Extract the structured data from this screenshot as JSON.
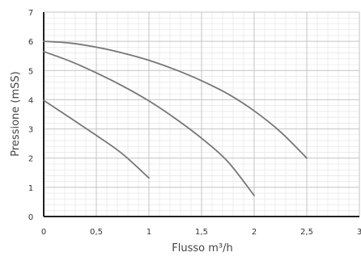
{
  "chart_data": {
    "type": "line",
    "title": "",
    "xlabel": "Flusso m³/h",
    "ylabel": "Pressione (mSS)",
    "xlim": [
      0,
      3
    ],
    "ylim": [
      0,
      7
    ],
    "x_ticks": [
      {
        "value": 0,
        "label": "0"
      },
      {
        "value": 0.5,
        "label": "0,5"
      },
      {
        "value": 1,
        "label": "1"
      },
      {
        "value": 1.5,
        "label": "1,5"
      },
      {
        "value": 2,
        "label": "2"
      },
      {
        "value": 2.5,
        "label": "2,5"
      },
      {
        "value": 3,
        "label": "3"
      }
    ],
    "y_ticks": [
      {
        "value": 0,
        "label": "0"
      },
      {
        "value": 1,
        "label": "1"
      },
      {
        "value": 2,
        "label": "2"
      },
      {
        "value": 3,
        "label": "3"
      },
      {
        "value": 4,
        "label": "4"
      },
      {
        "value": 5,
        "label": "5"
      },
      {
        "value": 6,
        "label": "6"
      },
      {
        "value": 7,
        "label": "7"
      }
    ],
    "grid": true,
    "minor_grid": true,
    "legend": "none",
    "series": [
      {
        "color": "#777777",
        "points": [
          {
            "x": 0,
            "y": 6.0
          },
          {
            "x": 0.25,
            "y": 5.94
          },
          {
            "x": 0.5,
            "y": 5.8
          },
          {
            "x": 0.75,
            "y": 5.6
          },
          {
            "x": 1.0,
            "y": 5.35
          },
          {
            "x": 1.25,
            "y": 5.03
          },
          {
            "x": 1.5,
            "y": 4.65
          },
          {
            "x": 1.75,
            "y": 4.2
          },
          {
            "x": 2.0,
            "y": 3.62
          },
          {
            "x": 2.25,
            "y": 2.9
          },
          {
            "x": 2.5,
            "y": 2.0
          }
        ]
      },
      {
        "color": "#777777",
        "points": [
          {
            "x": 0,
            "y": 5.65
          },
          {
            "x": 0.25,
            "y": 5.32
          },
          {
            "x": 0.5,
            "y": 4.92
          },
          {
            "x": 0.75,
            "y": 4.47
          },
          {
            "x": 1.0,
            "y": 3.96
          },
          {
            "x": 1.25,
            "y": 3.36
          },
          {
            "x": 1.5,
            "y": 2.68
          },
          {
            "x": 1.75,
            "y": 1.88
          },
          {
            "x": 2.0,
            "y": 0.72
          }
        ]
      },
      {
        "color": "#777777",
        "points": [
          {
            "x": 0,
            "y": 3.98
          },
          {
            "x": 0.25,
            "y": 3.38
          },
          {
            "x": 0.5,
            "y": 2.78
          },
          {
            "x": 0.75,
            "y": 2.14
          },
          {
            "x": 1.0,
            "y": 1.32
          }
        ]
      }
    ]
  }
}
